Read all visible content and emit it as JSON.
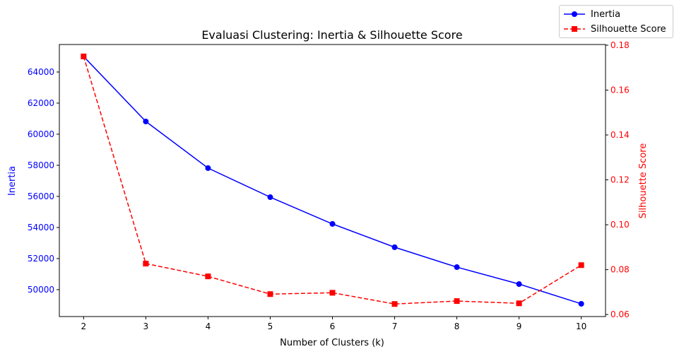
{
  "chart_data": {
    "type": "line",
    "title": "Evaluasi Clustering: Inertia & Silhouette Score",
    "xlabel": "Number of Clusters (k)",
    "x": [
      2,
      3,
      4,
      5,
      6,
      7,
      8,
      9,
      10
    ],
    "xlim": [
      1.61,
      10.39
    ],
    "xticks": [
      "2",
      "3",
      "4",
      "5",
      "6",
      "7",
      "8",
      "9",
      "10"
    ],
    "series": [
      {
        "name": "Inertia",
        "axis": "left",
        "color": "#0000ff",
        "marker": "circle",
        "linestyle": "solid",
        "values": [
          65000,
          60820,
          57820,
          55950,
          54230,
          52730,
          51450,
          50360,
          49090
        ]
      },
      {
        "name": "Silhouette Score",
        "axis": "right",
        "color": "#ff0000",
        "marker": "square",
        "linestyle": "dashed",
        "values": [
          0.175,
          0.0827,
          0.077,
          0.0691,
          0.0697,
          0.0647,
          0.066,
          0.065,
          0.082
        ]
      }
    ],
    "left_axis": {
      "label": "Inertia",
      "color": "#0000ff",
      "ylim": [
        48270,
        65770
      ],
      "ticks": [
        50000,
        52000,
        54000,
        56000,
        58000,
        60000,
        62000,
        64000
      ],
      "tick_labels": [
        "50000",
        "52000",
        "54000",
        "56000",
        "58000",
        "60000",
        "62000",
        "64000"
      ]
    },
    "right_axis": {
      "label": "Silhouette Score",
      "color": "#ff0000",
      "ylim": [
        0.0591,
        0.1803
      ],
      "ticks": [
        0.06,
        0.08,
        0.1,
        0.12,
        0.14,
        0.16,
        0.18
      ],
      "tick_labels": [
        "0.06",
        "0.08",
        "0.10",
        "0.12",
        "0.14",
        "0.16",
        "0.18"
      ]
    },
    "legend": {
      "placement": "top-right",
      "entries": [
        "Inertia",
        "Silhouette Score"
      ]
    },
    "grid": false
  }
}
